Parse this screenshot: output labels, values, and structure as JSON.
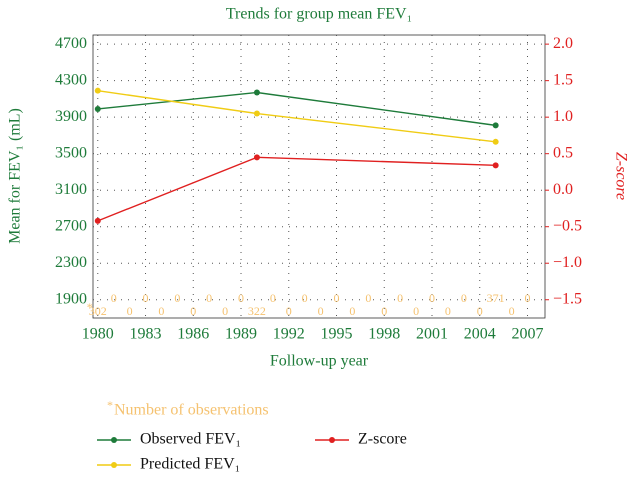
{
  "chart_data": {
    "type": "line",
    "title": "Trends for group mean FEV₁",
    "xlabel": "Follow-up year",
    "ylabel": "Mean for FEV₁ (mL)",
    "y2label": "Z-score",
    "x": [
      1980,
      1990,
      2005
    ],
    "series": [
      {
        "name": "Observed FEV₁",
        "color": "#1e7b3a",
        "values": [
          3990,
          4170,
          3810
        ]
      },
      {
        "name": "Predicted FEV₁",
        "color": "#f0cc14",
        "values": [
          4190,
          3940,
          3630
        ]
      },
      {
        "name": "Z-score",
        "color": "#e02020",
        "axis": "y2",
        "values": [
          -0.42,
          0.45,
          0.34
        ]
      }
    ],
    "xlim": [
      1979.7,
      2008.1
    ],
    "xticks": [
      1980,
      1983,
      1986,
      1989,
      1992,
      1995,
      1998,
      2001,
      2004,
      2007
    ],
    "ylim": [
      1700,
      4800
    ],
    "yticks": [
      1900,
      2300,
      2700,
      3100,
      3500,
      3900,
      4300,
      4700
    ],
    "y2lim": [
      -1.75,
      2.125
    ],
    "y2ticks": [
      {
        "value": -1.5,
        "label": "−1.5"
      },
      {
        "value": -1,
        "label": "−1.0"
      },
      {
        "value": -0.5,
        "label": "−0.5"
      },
      {
        "value": 0,
        "label": "0.0"
      },
      {
        "value": 0.5,
        "label": "0.5"
      },
      {
        "value": 1,
        "label": "1.0"
      },
      {
        "value": 1.5,
        "label": "1.5"
      },
      {
        "value": 2,
        "label": "2.0"
      }
    ],
    "grid": true,
    "observation_years": [
      1980,
      1981,
      1982,
      1983,
      1984,
      1985,
      1986,
      1987,
      1988,
      1989,
      1990,
      1991,
      1992,
      1993,
      1994,
      1995,
      1996,
      1997,
      1998,
      1999,
      2000,
      2001,
      2002,
      2003,
      2004,
      2005,
      2006,
      2007
    ],
    "observations": [
      302,
      0,
      0,
      0,
      0,
      0,
      0,
      0,
      0,
      0,
      322,
      0,
      0,
      0,
      0,
      0,
      0,
      0,
      0,
      0,
      0,
      0,
      0,
      0,
      0,
      371,
      0,
      0
    ],
    "observations_color": "#f5c270",
    "note_marker": "*",
    "note": "Number of observations"
  }
}
